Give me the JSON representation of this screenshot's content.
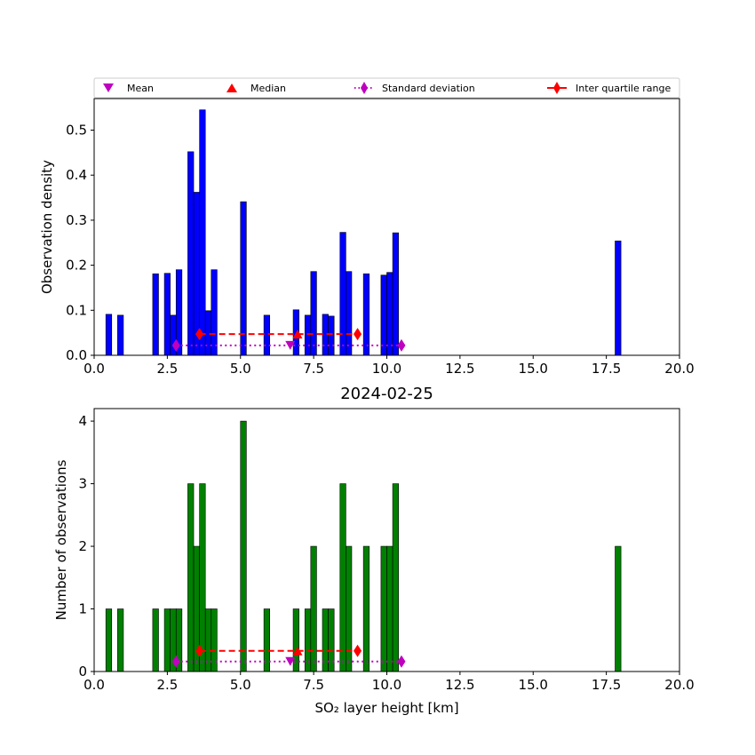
{
  "chart_data": [
    {
      "type": "bar",
      "xlabel": "",
      "ylabel": "Observation density",
      "xlim": [
        0,
        20
      ],
      "ylim": [
        0,
        0.57
      ],
      "xticks": [
        0,
        2.5,
        5,
        7.5,
        10,
        12.5,
        15,
        17.5,
        20
      ],
      "xtick_labels": [
        "0.0",
        "2.5",
        "5.0",
        "7.5",
        "10.0",
        "12.5",
        "15.0",
        "17.5",
        "20.0"
      ],
      "yticks": [
        0,
        0.1,
        0.2,
        0.3,
        0.4,
        0.5
      ],
      "ytick_labels": [
        "0.0",
        "0.1",
        "0.2",
        "0.3",
        "0.4",
        "0.5"
      ],
      "bar_color": "#0000ff",
      "bin_width": 0.2,
      "bars": [
        {
          "x": 0.5,
          "value": 0.091
        },
        {
          "x": 0.9,
          "value": 0.089
        },
        {
          "x": 2.1,
          "value": 0.181
        },
        {
          "x": 2.5,
          "value": 0.182
        },
        {
          "x": 2.7,
          "value": 0.089
        },
        {
          "x": 2.9,
          "value": 0.19
        },
        {
          "x": 3.3,
          "value": 0.452
        },
        {
          "x": 3.5,
          "value": 0.362
        },
        {
          "x": 3.7,
          "value": 0.545
        },
        {
          "x": 3.9,
          "value": 0.099
        },
        {
          "x": 4.1,
          "value": 0.19
        },
        {
          "x": 5.1,
          "value": 0.341
        },
        {
          "x": 5.9,
          "value": 0.089
        },
        {
          "x": 6.9,
          "value": 0.101
        },
        {
          "x": 7.3,
          "value": 0.089
        },
        {
          "x": 7.5,
          "value": 0.186
        },
        {
          "x": 7.9,
          "value": 0.091
        },
        {
          "x": 8.1,
          "value": 0.087
        },
        {
          "x": 8.5,
          "value": 0.273
        },
        {
          "x": 8.7,
          "value": 0.186
        },
        {
          "x": 9.3,
          "value": 0.181
        },
        {
          "x": 9.9,
          "value": 0.178
        },
        {
          "x": 10.1,
          "value": 0.184
        },
        {
          "x": 10.3,
          "value": 0.272
        },
        {
          "x": 17.9,
          "value": 0.254
        }
      ],
      "stats": {
        "mean": {
          "x": 6.7,
          "y": 0.022
        },
        "median": {
          "x": 6.95,
          "y": 0.047
        },
        "std": {
          "x": [
            2.8,
            10.5
          ],
          "y": 0.022
        },
        "iqr": {
          "x": [
            3.6,
            9.0
          ],
          "y": 0.047
        }
      }
    },
    {
      "type": "bar",
      "title": "2024-02-25",
      "xlabel": "SO₂ layer height [km]",
      "ylabel": "Number of observations",
      "xlim": [
        0,
        20
      ],
      "ylim": [
        0,
        4.2
      ],
      "xticks": [
        0,
        2.5,
        5,
        7.5,
        10,
        12.5,
        15,
        17.5,
        20
      ],
      "xtick_labels": [
        "0.0",
        "2.5",
        "5.0",
        "7.5",
        "10.0",
        "12.5",
        "15.0",
        "17.5",
        "20.0"
      ],
      "yticks": [
        0,
        1,
        2,
        3,
        4
      ],
      "ytick_labels": [
        "0",
        "1",
        "2",
        "3",
        "4"
      ],
      "bar_color": "#008000",
      "bin_width": 0.2,
      "bars": [
        {
          "x": 0.5,
          "value": 1
        },
        {
          "x": 0.9,
          "value": 1
        },
        {
          "x": 2.1,
          "value": 1
        },
        {
          "x": 2.5,
          "value": 1
        },
        {
          "x": 2.7,
          "value": 1
        },
        {
          "x": 2.9,
          "value": 1
        },
        {
          "x": 3.3,
          "value": 3
        },
        {
          "x": 3.5,
          "value": 2
        },
        {
          "x": 3.7,
          "value": 3
        },
        {
          "x": 3.9,
          "value": 1
        },
        {
          "x": 4.1,
          "value": 1
        },
        {
          "x": 5.1,
          "value": 4
        },
        {
          "x": 5.9,
          "value": 1
        },
        {
          "x": 6.9,
          "value": 1
        },
        {
          "x": 7.3,
          "value": 1
        },
        {
          "x": 7.5,
          "value": 2
        },
        {
          "x": 7.9,
          "value": 1
        },
        {
          "x": 8.1,
          "value": 1
        },
        {
          "x": 8.5,
          "value": 3
        },
        {
          "x": 8.7,
          "value": 2
        },
        {
          "x": 9.3,
          "value": 2
        },
        {
          "x": 9.9,
          "value": 2
        },
        {
          "x": 10.1,
          "value": 2
        },
        {
          "x": 10.3,
          "value": 3
        },
        {
          "x": 17.9,
          "value": 2
        }
      ],
      "stats": {
        "mean": {
          "x": 6.7,
          "y": 0.16
        },
        "median": {
          "x": 6.95,
          "y": 0.33
        },
        "std": {
          "x": [
            2.8,
            10.5
          ],
          "y": 0.16
        },
        "iqr": {
          "x": [
            3.6,
            9.0
          ],
          "y": 0.33
        }
      }
    }
  ],
  "legend": {
    "placement": "top",
    "entries": [
      {
        "key": "mean",
        "label": "Mean",
        "color": "#bf00bf"
      },
      {
        "key": "median",
        "label": "Median",
        "color": "#ff0000"
      },
      {
        "key": "std",
        "label": "Standard deviation",
        "color": "#bf00bf"
      },
      {
        "key": "iqr",
        "label": "Inter quartile range",
        "color": "#ff0000"
      }
    ]
  },
  "colors": {
    "mean": "#bf00bf",
    "median": "#ff0000",
    "std": "#bf00bf",
    "iqr": "#ff0000"
  }
}
